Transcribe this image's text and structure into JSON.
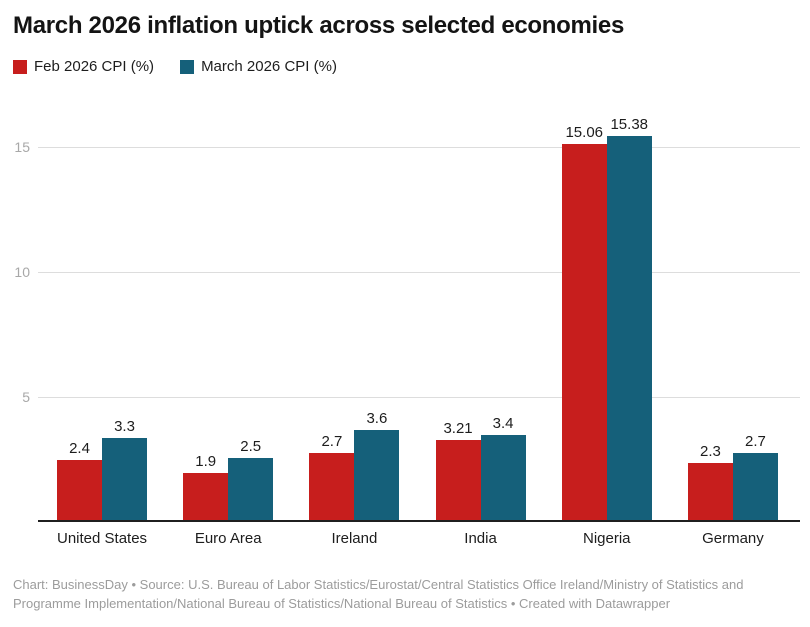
{
  "title": "March 2026 inflation uptick across selected economies",
  "legend": [
    {
      "label": "Feb 2026 CPI (%)",
      "color": "#c71e1d"
    },
    {
      "label": "March 2026 CPI (%)",
      "color": "#15607a"
    }
  ],
  "chart_data": {
    "type": "bar",
    "title": "March 2026 inflation uptick across selected economies",
    "categories": [
      "United States",
      "Euro Area",
      "Ireland",
      "India",
      "Nigeria",
      "Germany"
    ],
    "series": [
      {
        "name": "Feb 2026 CPI (%)",
        "color": "#c71e1d",
        "values": [
          2.4,
          1.9,
          2.7,
          3.21,
          15.06,
          2.3
        ]
      },
      {
        "name": "March 2026 CPI (%)",
        "color": "#15607a",
        "values": [
          3.3,
          2.5,
          3.6,
          3.4,
          15.38,
          2.7
        ]
      }
    ],
    "xlabel": "",
    "ylabel": "",
    "yticks": [
      5,
      10,
      15
    ],
    "ylim": [
      0,
      16.9
    ],
    "grid": "horizontal",
    "legend_position": "top-left",
    "value_labels_shown": true
  },
  "footer": {
    "text": "Chart: BusinessDay • Source: U.S. Bureau of Labor Statistics/Eurostat/Central Statistics Office Ireland/Ministry of Statistics and Programme Implementation/National Bureau of Statistics/National Bureau of Statistics • Created with Datawrapper"
  },
  "colors": {
    "series_feb": "#c71e1d",
    "series_march": "#15607a",
    "gridline": "#dddddd",
    "axis_line": "#1f1f1f",
    "tick_text": "#a8a8a8",
    "footer_text": "#9c9c9c",
    "title_text": "#141414"
  }
}
